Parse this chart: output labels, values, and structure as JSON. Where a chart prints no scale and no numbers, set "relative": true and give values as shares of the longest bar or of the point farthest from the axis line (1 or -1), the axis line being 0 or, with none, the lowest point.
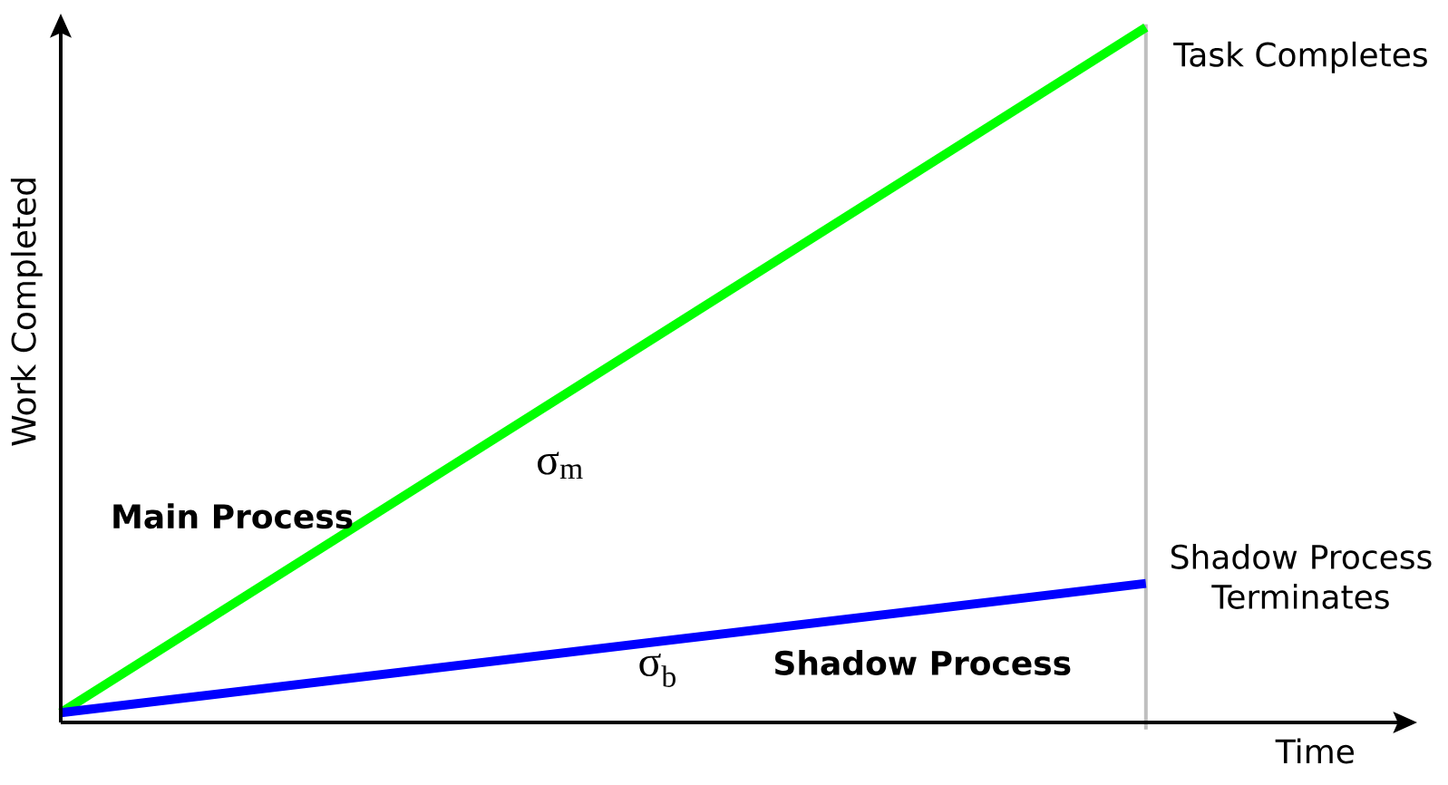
{
  "chart_data": {
    "type": "line",
    "relative": true,
    "xlabel": "Time",
    "ylabel": "Work Completed",
    "categories": [
      null,
      null
    ],
    "series": [
      {
        "name": "Main Process",
        "color": "#00ff00",
        "values": [
          0.014,
          1
        ]
      },
      {
        "name": "Shadow Process",
        "color": "#0000ff",
        "values": [
          0.014,
          0.2
        ]
      }
    ],
    "annotations": [
      "Task Completes",
      "Shadow Process Terminates",
      "σ$_{m}$",
      "σ$_{b}$"
    ]
  }
}
